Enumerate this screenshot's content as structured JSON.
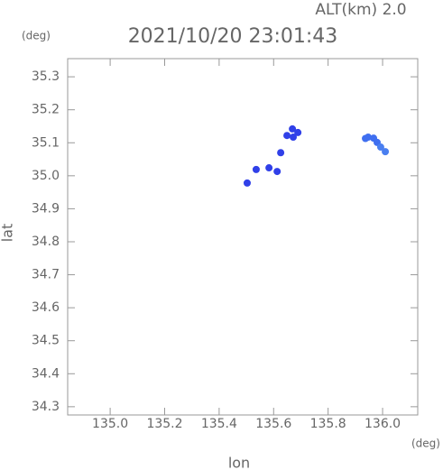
{
  "chart_data": {
    "type": "scatter",
    "title": "2021/10/20 23:01:43",
    "subtitle": "ALT(km) 2.0",
    "xlabel": "lon",
    "ylabel": "lat",
    "xunit": "(deg)",
    "yunit": "(deg)",
    "x": [
      135.947,
      135.967,
      135.98,
      135.993,
      136.01,
      135.937,
      135.669,
      135.689,
      135.649,
      135.672,
      135.626,
      135.583,
      135.536,
      135.613,
      135.503
    ],
    "values": [
      35.117,
      35.114,
      35.101,
      35.087,
      35.073,
      35.113,
      35.142,
      35.131,
      35.122,
      35.117,
      35.07,
      35.024,
      35.019,
      35.013,
      34.978
    ],
    "colors": [
      "#3f6ff0",
      "#3f6ff0",
      "#3f6ff0",
      "#4a7ff0",
      "#4a7ff0",
      "#3f6ff0",
      "#3040e8",
      "#3040e8",
      "#3040e8",
      "#3040e8",
      "#3040e8",
      "#3040e8",
      "#3040e8",
      "#3040e8",
      "#3040e8"
    ],
    "xlim": [
      134.844,
      136.129
    ],
    "ylim": [
      34.275,
      35.355
    ],
    "xticks": [
      {
        "value": 135.0,
        "label": "135.0"
      },
      135.2,
      135.4,
      135.6,
      135.8,
      {
        "value": 136.0,
        "label": "136.0"
      }
    ],
    "yticks": [
      34.3,
      34.4,
      34.5,
      34.6,
      34.7,
      34.8,
      34.9,
      {
        "value": 35.0,
        "label": "35.0"
      },
      35.1,
      35.2,
      35.3
    ]
  }
}
